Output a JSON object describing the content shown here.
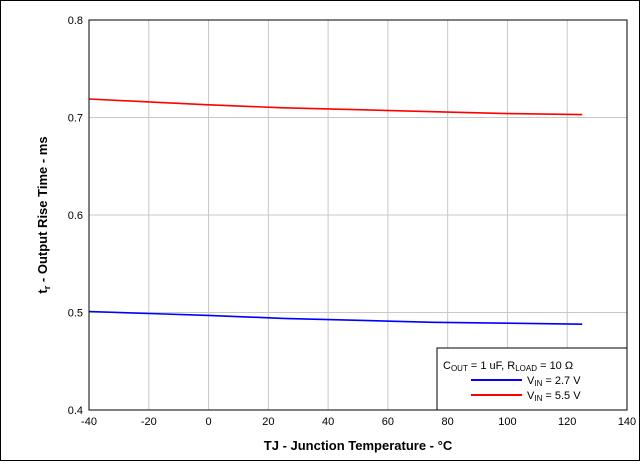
{
  "chart_data": {
    "type": "line",
    "xlabel": "TJ - Junction Temperature - °C",
    "ylabel_main": "t",
    "ylabel_sub": "r",
    "ylabel_rest": " - Output Rise Time - ms",
    "xlim": [
      -40,
      140
    ],
    "ylim": [
      0.4,
      0.8
    ],
    "xticks": [
      -40,
      -20,
      0,
      20,
      40,
      60,
      80,
      100,
      120,
      140
    ],
    "yticks": [
      0.4,
      0.5,
      0.6,
      0.7,
      0.8
    ],
    "grid": true,
    "legend_placement": "bottom-right",
    "legend_title": {
      "c": "C",
      "c_sub": "OUT",
      "mid": " = 1 uF, R",
      "r_sub": "LOAD",
      "end": " = 10 Ω"
    },
    "series": [
      {
        "label_main": "V",
        "label_sub": "IN",
        "label_rest": " = 2.7 V",
        "color": "#0000ff",
        "x": [
          -40,
          -20,
          0,
          25,
          50,
          75,
          100,
          125
        ],
        "y": [
          0.501,
          0.499,
          0.497,
          0.494,
          0.492,
          0.49,
          0.489,
          0.488
        ]
      },
      {
        "label_main": "V",
        "label_sub": "IN",
        "label_rest": " = 5.5 V",
        "color": "#ff0000",
        "x": [
          -40,
          -20,
          0,
          25,
          50,
          75,
          100,
          125
        ],
        "y": [
          0.719,
          0.716,
          0.713,
          0.71,
          0.708,
          0.706,
          0.704,
          0.703
        ]
      }
    ]
  }
}
